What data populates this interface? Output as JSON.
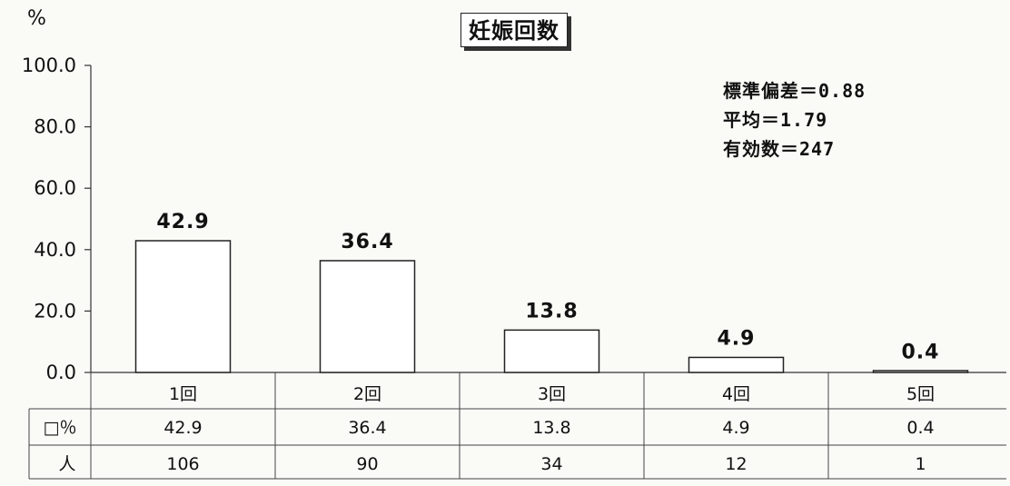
{
  "chart_data": {
    "type": "bar",
    "title": "妊娠回数",
    "y_unit": "%",
    "ylim": [
      0,
      100
    ],
    "yticks": [
      "100.0",
      "80.0",
      "60.0",
      "40.0",
      "20.0",
      "0.0"
    ],
    "categories": [
      "1回",
      "2回",
      "3回",
      "4回",
      "5回"
    ],
    "values": [
      42.9,
      36.4,
      13.8,
      4.9,
      0.4
    ],
    "value_labels": [
      "42.9",
      "36.4",
      "13.8",
      "4.9",
      "0.4"
    ],
    "counts": [
      "106",
      "90",
      "34",
      "12",
      "1"
    ],
    "table_row_labels": [
      "□％",
      "人"
    ],
    "stats": [
      "標準偏差＝0.88",
      "平均＝1.79",
      "有効数＝247"
    ],
    "grid": false,
    "bar_fill": "#ffffff",
    "bar_stroke": "#222222"
  }
}
